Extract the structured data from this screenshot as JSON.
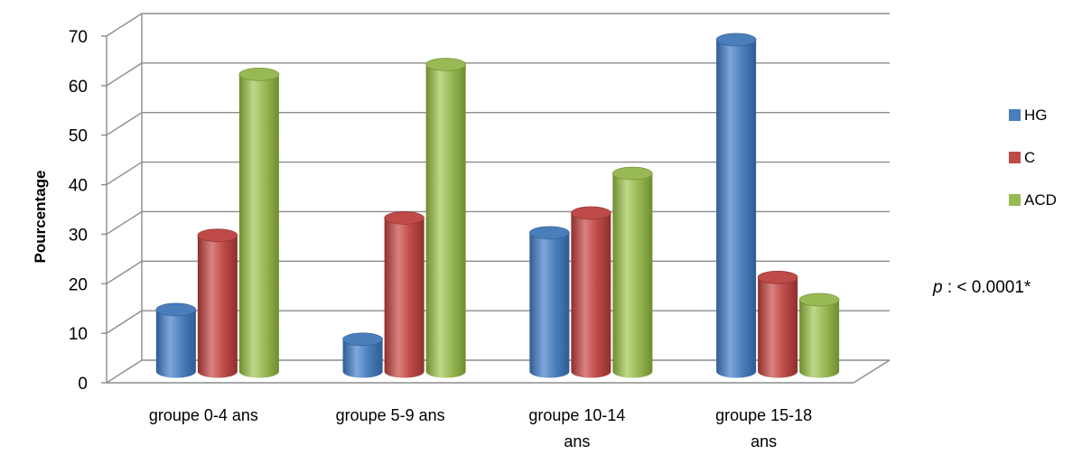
{
  "chart_data": {
    "type": "bar",
    "categories": [
      [
        "groupe 0-4 ans"
      ],
      [
        "groupe 5-9 ans"
      ],
      [
        "groupe 10-14",
        "ans"
      ],
      [
        "groupe 15-18",
        "ans"
      ]
    ],
    "series": [
      {
        "name": "HG",
        "values": [
          12.5,
          6.5,
          28,
          67
        ],
        "color": "#4A7EBB",
        "dark": "#2E5C94",
        "light": "#7FA7DA"
      },
      {
        "name": "C",
        "values": [
          27.5,
          31,
          32,
          19
        ],
        "color": "#BE4B48",
        "dark": "#8E2F2D",
        "light": "#D98280"
      },
      {
        "name": "ACD",
        "values": [
          60,
          62,
          40,
          14.5
        ],
        "color": "#98B954",
        "dark": "#6E8C30",
        "light": "#BFD889"
      }
    ],
    "title": "",
    "xlabel": "",
    "ylabel": "Pourcentage",
    "ylim": [
      0,
      70
    ],
    "yticks": [
      "0",
      "10",
      "20",
      "30",
      "40",
      "50",
      "60",
      "70"
    ],
    "grid": true,
    "legend_position": "right",
    "annotation": {
      "italic": "p",
      "text": " : < 0.0001*"
    }
  }
}
